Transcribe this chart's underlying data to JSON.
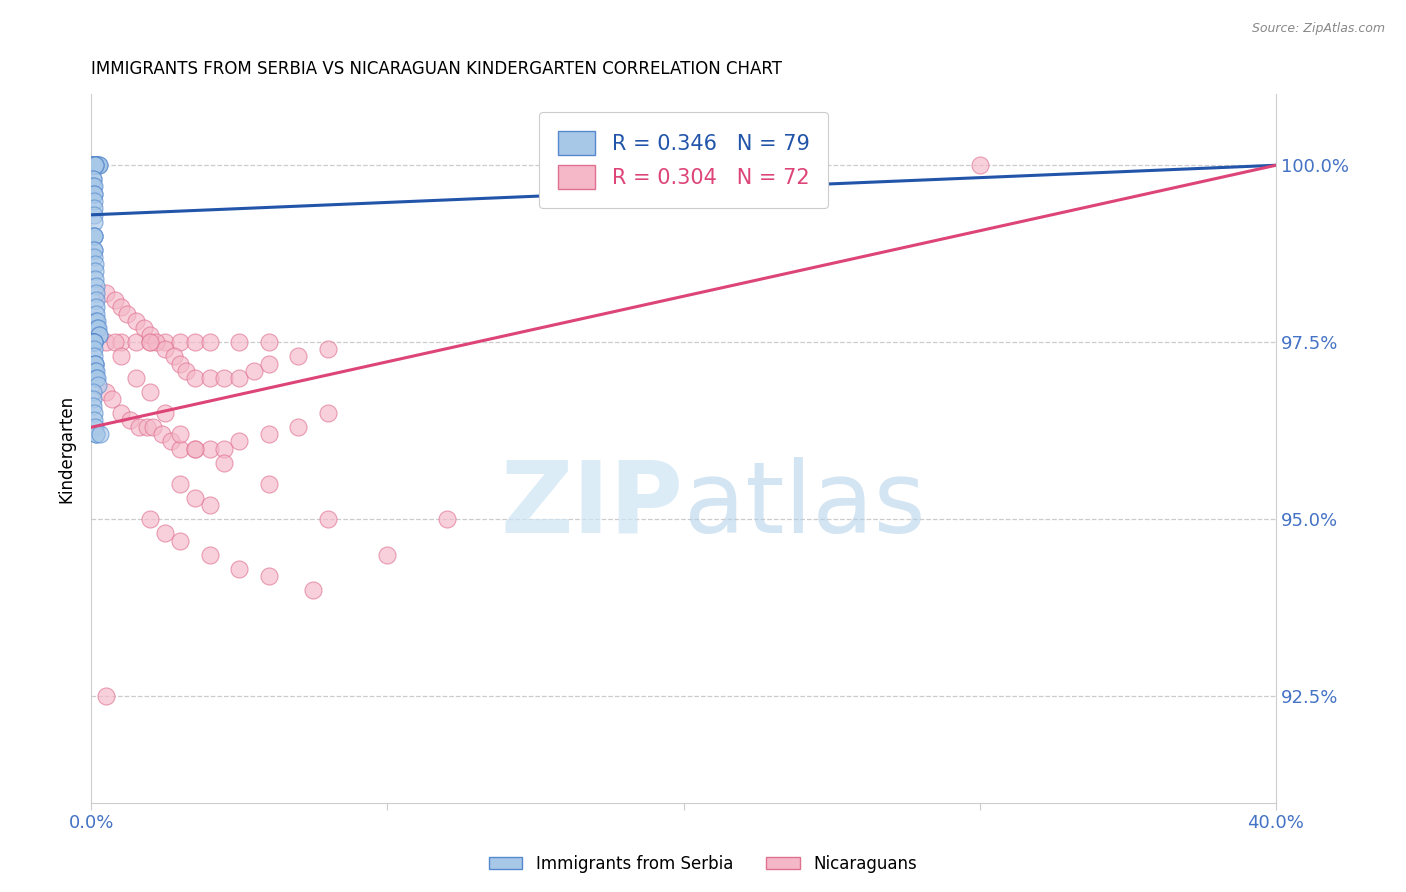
{
  "title": "IMMIGRANTS FROM SERBIA VS NICARAGUAN KINDERGARTEN CORRELATION CHART",
  "source": "Source: ZipAtlas.com",
  "ylabel": "Kindergarten",
  "yticks": [
    92.5,
    95.0,
    97.5,
    100.0
  ],
  "ytick_labels": [
    "92.5%",
    "95.0%",
    "97.5%",
    "100.0%"
  ],
  "xlim": [
    0.0,
    40.0
  ],
  "ylim": [
    91.0,
    101.0
  ],
  "blue_color": "#a8c8e8",
  "pink_color": "#f4b8c8",
  "blue_edge_color": "#5588cc",
  "pink_edge_color": "#e07090",
  "blue_line_color": "#2255aa",
  "pink_line_color": "#dd4477",
  "legend_R1": "0.346",
  "legend_N1": "79",
  "legend_R2": "0.304",
  "legend_N2": "72",
  "legend_label1": "Immigrants from Serbia",
  "legend_label2": "Nicaraguans",
  "watermark_zip": "ZIP",
  "watermark_atlas": "atlas",
  "serbia_x": [
    0.05,
    0.08,
    0.1,
    0.12,
    0.15,
    0.18,
    0.2,
    0.22,
    0.25,
    0.28,
    0.05,
    0.06,
    0.07,
    0.08,
    0.09,
    0.1,
    0.11,
    0.12,
    0.13,
    0.14,
    0.05,
    0.06,
    0.07,
    0.08,
    0.09,
    0.1,
    0.1,
    0.1,
    0.1,
    0.1,
    0.08,
    0.09,
    0.1,
    0.1,
    0.1,
    0.1,
    0.12,
    0.12,
    0.12,
    0.15,
    0.15,
    0.15,
    0.16,
    0.18,
    0.18,
    0.2,
    0.2,
    0.22,
    0.25,
    0.28,
    0.05,
    0.05,
    0.06,
    0.06,
    0.07,
    0.07,
    0.08,
    0.08,
    0.09,
    0.09,
    0.1,
    0.1,
    0.12,
    0.12,
    0.14,
    0.14,
    0.16,
    0.18,
    0.2,
    0.22,
    0.05,
    0.06,
    0.07,
    0.09,
    0.11,
    0.13,
    0.15,
    0.18,
    0.3
  ],
  "serbia_y": [
    100.0,
    100.0,
    100.0,
    100.0,
    100.0,
    100.0,
    100.0,
    100.0,
    100.0,
    100.0,
    100.0,
    100.0,
    100.0,
    100.0,
    100.0,
    100.0,
    100.0,
    100.0,
    100.0,
    100.0,
    99.8,
    99.8,
    99.7,
    99.7,
    99.6,
    99.6,
    99.5,
    99.4,
    99.3,
    99.2,
    99.0,
    99.0,
    99.0,
    98.8,
    98.8,
    98.7,
    98.6,
    98.5,
    98.4,
    98.3,
    98.2,
    98.1,
    98.0,
    97.9,
    97.8,
    97.8,
    97.7,
    97.7,
    97.6,
    97.6,
    97.5,
    97.5,
    97.5,
    97.5,
    97.5,
    97.5,
    97.5,
    97.5,
    97.5,
    97.5,
    97.4,
    97.3,
    97.2,
    97.2,
    97.2,
    97.1,
    97.1,
    97.0,
    97.0,
    96.9,
    96.8,
    96.7,
    96.6,
    96.5,
    96.4,
    96.3,
    96.2,
    96.2,
    96.2
  ],
  "nicaragua_x": [
    0.5,
    1.0,
    1.5,
    2.0,
    2.5,
    3.0,
    3.5,
    4.0,
    5.0,
    6.0,
    0.5,
    0.8,
    1.0,
    1.2,
    1.5,
    1.8,
    2.0,
    2.2,
    2.5,
    2.8,
    3.0,
    3.2,
    3.5,
    4.0,
    4.5,
    5.0,
    5.5,
    6.0,
    7.0,
    8.0,
    0.5,
    0.7,
    1.0,
    1.3,
    1.6,
    1.9,
    2.1,
    2.4,
    2.7,
    3.0,
    3.5,
    4.0,
    4.5,
    5.0,
    6.0,
    7.0,
    8.0,
    3.0,
    3.5,
    4.0,
    2.0,
    2.5,
    3.0,
    4.0,
    5.0,
    6.0,
    7.5,
    10.0,
    12.0,
    0.8,
    1.0,
    1.5,
    2.0,
    2.5,
    3.0,
    3.5,
    4.5,
    6.0,
    8.0,
    30.0,
    0.5,
    2.0
  ],
  "nicaragua_y": [
    97.5,
    97.5,
    97.5,
    97.5,
    97.5,
    97.5,
    97.5,
    97.5,
    97.5,
    97.5,
    98.2,
    98.1,
    98.0,
    97.9,
    97.8,
    97.7,
    97.6,
    97.5,
    97.4,
    97.3,
    97.2,
    97.1,
    97.0,
    97.0,
    97.0,
    97.0,
    97.1,
    97.2,
    97.3,
    97.4,
    96.8,
    96.7,
    96.5,
    96.4,
    96.3,
    96.3,
    96.3,
    96.2,
    96.1,
    96.0,
    96.0,
    96.0,
    96.0,
    96.1,
    96.2,
    96.3,
    96.5,
    95.5,
    95.3,
    95.2,
    95.0,
    94.8,
    94.7,
    94.5,
    94.3,
    94.2,
    94.0,
    94.5,
    95.0,
    97.5,
    97.3,
    97.0,
    96.8,
    96.5,
    96.2,
    96.0,
    95.8,
    95.5,
    95.0,
    100.0,
    92.5,
    97.5
  ],
  "blue_trendline_x": [
    0.0,
    40.0
  ],
  "blue_trendline_y": [
    99.3,
    100.0
  ],
  "pink_trendline_x": [
    0.0,
    40.0
  ],
  "pink_trendline_y": [
    96.3,
    100.0
  ]
}
